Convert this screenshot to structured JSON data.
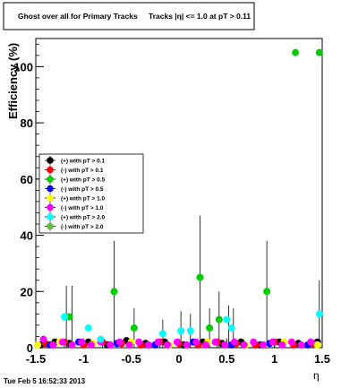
{
  "chart_data": {
    "type": "scatter",
    "title": "Ghost over all for Primary Tracks",
    "title_overlap": "Tracks |η| <= 1.0 at pT > 0.11",
    "xlabel": "η",
    "ylabel": "Efficiency (%)",
    "xlim": [
      -1.5,
      1.5
    ],
    "ylim": [
      0,
      110
    ],
    "x_ticks": [
      "-1.5",
      "-1",
      "-0.5",
      "0",
      "0.5",
      "1",
      "1.5"
    ],
    "y_ticks": [
      "0",
      "20",
      "40",
      "60",
      "80",
      "100"
    ],
    "grid": false,
    "legend_position": "middle-left",
    "series": [
      {
        "name": "(+) with pT > 0.1",
        "color": "#000000",
        "points": [
          [
            -1.45,
            1
          ],
          [
            -1.3,
            2
          ],
          [
            -1.15,
            1.5
          ],
          [
            -0.95,
            2
          ],
          [
            -0.75,
            1
          ],
          [
            -0.55,
            2.5
          ],
          [
            -0.35,
            1.5
          ],
          [
            -0.15,
            2
          ],
          [
            0.05,
            1
          ],
          [
            0.25,
            2
          ],
          [
            0.45,
            1.5
          ],
          [
            0.65,
            2
          ],
          [
            0.85,
            1
          ],
          [
            1.05,
            2
          ],
          [
            1.25,
            1.5
          ],
          [
            1.45,
            2
          ]
        ]
      },
      {
        "name": "(-) with pT > 0.1",
        "color": "#ff0000",
        "points": [
          [
            -1.4,
            1.5
          ],
          [
            -1.2,
            2
          ],
          [
            -1.0,
            1
          ],
          [
            -0.8,
            2
          ],
          [
            -0.6,
            1.5
          ],
          [
            -0.4,
            1
          ],
          [
            -0.2,
            2
          ],
          [
            0.0,
            1.5
          ],
          [
            0.2,
            1
          ],
          [
            0.4,
            2
          ],
          [
            0.6,
            1.5
          ],
          [
            0.8,
            1
          ],
          [
            1.0,
            2
          ],
          [
            1.2,
            1
          ],
          [
            1.4,
            1.5
          ]
        ]
      },
      {
        "name": "(+) with pT > 0.5",
        "color": "#00cc00",
        "points": [
          [
            -1.15,
            11
          ],
          [
            -0.68,
            20
          ],
          [
            -0.47,
            7
          ],
          [
            0.22,
            25
          ],
          [
            0.32,
            7
          ],
          [
            0.42,
            10
          ],
          [
            0.92,
            20
          ],
          [
            1.22,
            105
          ],
          [
            1.47,
            105
          ]
        ]
      },
      {
        "name": "(-) with pT > 0.5",
        "color": "#0000ff",
        "points": [
          [
            -1.35,
            1
          ],
          [
            -1.05,
            2
          ],
          [
            -0.65,
            1.5
          ],
          [
            -0.25,
            1
          ],
          [
            0.15,
            2
          ],
          [
            0.55,
            1
          ],
          [
            0.95,
            1.5
          ],
          [
            1.35,
            1
          ]
        ]
      },
      {
        "name": "(+) with pT > 1.0",
        "color": "#ffff00",
        "points": [
          [
            -1.48,
            1
          ],
          [
            -1.25,
            2
          ],
          [
            -0.9,
            1.5
          ],
          [
            -0.5,
            2
          ],
          [
            -0.1,
            1
          ],
          [
            0.3,
            2
          ],
          [
            0.7,
            1
          ],
          [
            1.1,
            2
          ],
          [
            1.45,
            1
          ]
        ]
      },
      {
        "name": "(-) with pT > 1.0",
        "color": "#ff00ff",
        "points": [
          [
            -1.42,
            3
          ],
          [
            -1.32,
            1
          ],
          [
            -1.22,
            2
          ],
          [
            -1.12,
            1
          ],
          [
            -1.02,
            2
          ],
          [
            -0.92,
            1
          ],
          [
            -0.82,
            2
          ],
          [
            -0.72,
            1
          ],
          [
            -0.62,
            2
          ],
          [
            -0.52,
            1
          ],
          [
            -0.42,
            2
          ],
          [
            -0.32,
            1
          ],
          [
            -0.22,
            2
          ],
          [
            -0.12,
            1
          ],
          [
            -0.02,
            2
          ],
          [
            0.08,
            1
          ],
          [
            0.18,
            2
          ],
          [
            0.28,
            1
          ],
          [
            0.38,
            2
          ],
          [
            0.48,
            1
          ],
          [
            0.58,
            2
          ],
          [
            0.68,
            1
          ],
          [
            0.78,
            2
          ],
          [
            0.88,
            1
          ],
          [
            0.98,
            2
          ],
          [
            1.08,
            1
          ],
          [
            1.18,
            2
          ],
          [
            1.28,
            1
          ],
          [
            1.38,
            2
          ]
        ]
      },
      {
        "name": "(+) with pT > 2.0",
        "color": "#00ffff",
        "points": [
          [
            -1.2,
            11
          ],
          [
            -0.95,
            7
          ],
          [
            -0.82,
            3
          ],
          [
            -0.17,
            5
          ],
          [
            0.02,
            6
          ],
          [
            0.12,
            6
          ],
          [
            0.5,
            10
          ],
          [
            0.55,
            7
          ],
          [
            1.47,
            12
          ]
        ]
      },
      {
        "name": "(-) with pT > 2.0",
        "color": "#66bb44",
        "points": []
      }
    ],
    "error_bars": [
      {
        "x": -1.18,
        "lo": 0,
        "hi": 22
      },
      {
        "x": -1.12,
        "lo": 0,
        "hi": 22
      },
      {
        "x": -0.68,
        "lo": 2,
        "hi": 38
      },
      {
        "x": -0.47,
        "lo": 0,
        "hi": 14
      },
      {
        "x": -0.17,
        "lo": 0,
        "hi": 10
      },
      {
        "x": 0.02,
        "lo": 0,
        "hi": 13
      },
      {
        "x": 0.12,
        "lo": 0,
        "hi": 12
      },
      {
        "x": 0.22,
        "lo": 3,
        "hi": 47
      },
      {
        "x": 0.32,
        "lo": 0,
        "hi": 14
      },
      {
        "x": 0.42,
        "lo": 0,
        "hi": 20
      },
      {
        "x": 0.52,
        "lo": 0,
        "hi": 15
      },
      {
        "x": 0.57,
        "lo": 0,
        "hi": 14
      },
      {
        "x": 0.92,
        "lo": 2,
        "hi": 38
      },
      {
        "x": 1.47,
        "lo": 0,
        "hi": 24
      }
    ]
  },
  "footer": {
    "timestamp": "Tue Feb  5 16:52:33 2013"
  }
}
